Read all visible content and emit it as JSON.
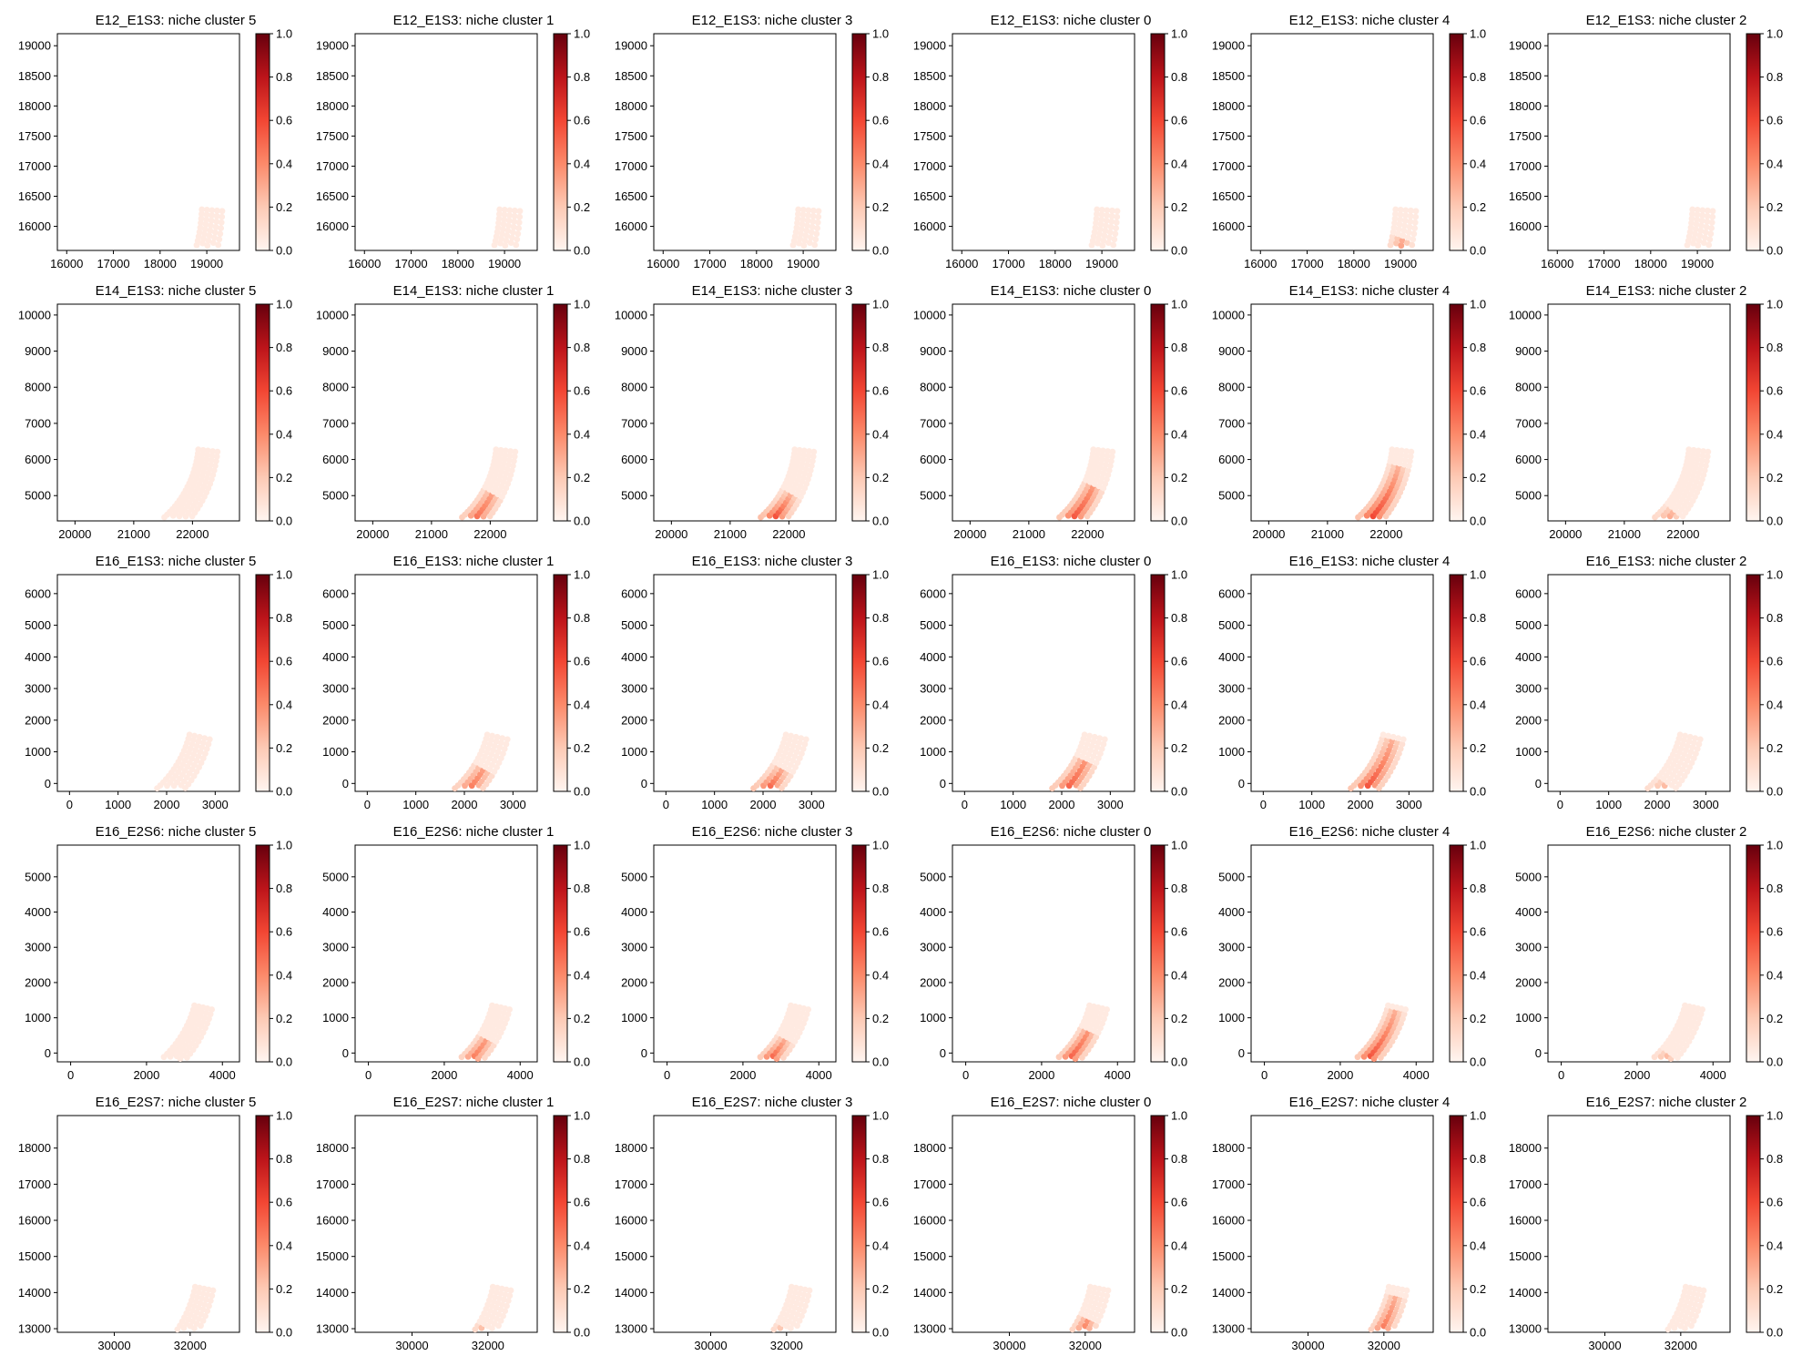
{
  "figure": {
    "colorbar_ticks": [
      "0.0",
      "0.2",
      "0.4",
      "0.6",
      "0.8",
      "1.0"
    ],
    "colormap": [
      "#fff5f0",
      "#fdcab5",
      "#fc8a6a",
      "#f24633",
      "#bc141a",
      "#67000d"
    ],
    "tissue_base_color": "#fee7dc"
  },
  "chart_data": [
    {
      "type": "spatial-scatter",
      "sample": "E12_E1S3",
      "cluster": 5,
      "title": "E12_E1S3: niche cluster 5",
      "xticks": [
        "16000",
        "17000",
        "18000",
        "19000"
      ],
      "yticks": [
        "19000",
        "18500",
        "18000",
        "17500",
        "17000",
        "16500",
        "16000"
      ],
      "xlim": [
        15800,
        19700
      ],
      "ylim": [
        15600,
        19200
      ],
      "colorbar_range": [
        0,
        1
      ]
    },
    {
      "type": "spatial-scatter",
      "sample": "E12_E1S3",
      "cluster": 1,
      "title": "E12_E1S3: niche cluster 1",
      "xticks": [
        "16000",
        "17000",
        "18000",
        "19000"
      ],
      "yticks": [
        "19000",
        "18500",
        "18000",
        "17500",
        "17000",
        "16500",
        "16000"
      ],
      "xlim": [
        15800,
        19700
      ],
      "ylim": [
        15600,
        19200
      ],
      "colorbar_range": [
        0,
        1
      ]
    },
    {
      "type": "spatial-scatter",
      "sample": "E12_E1S3",
      "cluster": 3,
      "title": "E12_E1S3: niche cluster 3",
      "xticks": [
        "16000",
        "17000",
        "18000",
        "19000"
      ],
      "yticks": [
        "19000",
        "18500",
        "18000",
        "17500",
        "17000",
        "16500",
        "16000"
      ],
      "xlim": [
        15800,
        19700
      ],
      "ylim": [
        15600,
        19200
      ],
      "colorbar_range": [
        0,
        1
      ]
    },
    {
      "type": "spatial-scatter",
      "sample": "E12_E1S3",
      "cluster": 0,
      "title": "E12_E1S3: niche cluster 0",
      "xticks": [
        "16000",
        "17000",
        "18000",
        "19000"
      ],
      "yticks": [
        "19000",
        "18500",
        "18000",
        "17500",
        "17000",
        "16500",
        "16000"
      ],
      "xlim": [
        15800,
        19700
      ],
      "ylim": [
        15600,
        19200
      ],
      "colorbar_range": [
        0,
        1
      ]
    },
    {
      "type": "spatial-scatter",
      "sample": "E12_E1S3",
      "cluster": 4,
      "title": "E12_E1S3: niche cluster 4",
      "xticks": [
        "16000",
        "17000",
        "18000",
        "19000"
      ],
      "yticks": [
        "19000",
        "18500",
        "18000",
        "17500",
        "17000",
        "16500",
        "16000"
      ],
      "xlim": [
        15800,
        19700
      ],
      "ylim": [
        15600,
        19200
      ],
      "colorbar_range": [
        0,
        1
      ]
    },
    {
      "type": "spatial-scatter",
      "sample": "E12_E1S3",
      "cluster": 2,
      "title": "E12_E1S3: niche cluster 2",
      "xticks": [
        "16000",
        "17000",
        "18000",
        "19000"
      ],
      "yticks": [
        "19000",
        "18500",
        "18000",
        "17500",
        "17000",
        "16500",
        "16000"
      ],
      "xlim": [
        15800,
        19700
      ],
      "ylim": [
        15600,
        19200
      ],
      "colorbar_range": [
        0,
        1
      ]
    },
    {
      "type": "spatial-scatter",
      "sample": "E14_E1S3",
      "cluster": 5,
      "title": "E14_E1S3: niche cluster 5",
      "xticks": [
        "20000",
        "21000",
        "22000"
      ],
      "yticks": [
        "10000",
        "9000",
        "8000",
        "7000",
        "6000",
        "5000"
      ],
      "xlim": [
        19700,
        22800
      ],
      "ylim": [
        4300,
        10300
      ],
      "colorbar_range": [
        0,
        1
      ]
    },
    {
      "type": "spatial-scatter",
      "sample": "E14_E1S3",
      "cluster": 1,
      "title": "E14_E1S3: niche cluster 1",
      "xticks": [
        "20000",
        "21000",
        "22000"
      ],
      "yticks": [
        "10000",
        "9000",
        "8000",
        "7000",
        "6000",
        "5000"
      ],
      "xlim": [
        19700,
        22800
      ],
      "ylim": [
        4300,
        10300
      ],
      "colorbar_range": [
        0,
        1
      ]
    },
    {
      "type": "spatial-scatter",
      "sample": "E14_E1S3",
      "cluster": 3,
      "title": "E14_E1S3: niche cluster 3",
      "xticks": [
        "20000",
        "21000",
        "22000"
      ],
      "yticks": [
        "10000",
        "9000",
        "8000",
        "7000",
        "6000",
        "5000"
      ],
      "xlim": [
        19700,
        22800
      ],
      "ylim": [
        4300,
        10300
      ],
      "colorbar_range": [
        0,
        1
      ]
    },
    {
      "type": "spatial-scatter",
      "sample": "E14_E1S3",
      "cluster": 0,
      "title": "E14_E1S3: niche cluster 0",
      "xticks": [
        "20000",
        "21000",
        "22000"
      ],
      "yticks": [
        "10000",
        "9000",
        "8000",
        "7000",
        "6000",
        "5000"
      ],
      "xlim": [
        19700,
        22800
      ],
      "ylim": [
        4300,
        10300
      ],
      "colorbar_range": [
        0,
        1
      ]
    },
    {
      "type": "spatial-scatter",
      "sample": "E14_E1S3",
      "cluster": 4,
      "title": "E14_E1S3: niche cluster 4",
      "xticks": [
        "20000",
        "21000",
        "22000"
      ],
      "yticks": [
        "10000",
        "9000",
        "8000",
        "7000",
        "6000",
        "5000"
      ],
      "xlim": [
        19700,
        22800
      ],
      "ylim": [
        4300,
        10300
      ],
      "colorbar_range": [
        0,
        1
      ]
    },
    {
      "type": "spatial-scatter",
      "sample": "E14_E1S3",
      "cluster": 2,
      "title": "E14_E1S3: niche cluster 2",
      "xticks": [
        "20000",
        "21000",
        "22000"
      ],
      "yticks": [
        "10000",
        "9000",
        "8000",
        "7000",
        "6000",
        "5000"
      ],
      "xlim": [
        19700,
        22800
      ],
      "ylim": [
        4300,
        10300
      ],
      "colorbar_range": [
        0,
        1
      ]
    },
    {
      "type": "spatial-scatter",
      "sample": "E16_E1S3",
      "cluster": 5,
      "title": "E16_E1S3: niche cluster 5",
      "xticks": [
        "0",
        "1000",
        "2000",
        "3000"
      ],
      "yticks": [
        "6000",
        "5000",
        "4000",
        "3000",
        "2000",
        "1000",
        "0"
      ],
      "xlim": [
        -250,
        3500
      ],
      "ylim": [
        -250,
        6600
      ],
      "colorbar_range": [
        0,
        1
      ]
    },
    {
      "type": "spatial-scatter",
      "sample": "E16_E1S3",
      "cluster": 1,
      "title": "E16_E1S3: niche cluster 1",
      "xticks": [
        "0",
        "1000",
        "2000",
        "3000"
      ],
      "yticks": [
        "6000",
        "5000",
        "4000",
        "3000",
        "2000",
        "1000",
        "0"
      ],
      "xlim": [
        -250,
        3500
      ],
      "ylim": [
        -250,
        6600
      ],
      "colorbar_range": [
        0,
        1
      ]
    },
    {
      "type": "spatial-scatter",
      "sample": "E16_E1S3",
      "cluster": 3,
      "title": "E16_E1S3: niche cluster 3",
      "xticks": [
        "0",
        "1000",
        "2000",
        "3000"
      ],
      "yticks": [
        "6000",
        "5000",
        "4000",
        "3000",
        "2000",
        "1000",
        "0"
      ],
      "xlim": [
        -250,
        3500
      ],
      "ylim": [
        -250,
        6600
      ],
      "colorbar_range": [
        0,
        1
      ]
    },
    {
      "type": "spatial-scatter",
      "sample": "E16_E1S3",
      "cluster": 0,
      "title": "E16_E1S3: niche cluster 0",
      "xticks": [
        "0",
        "1000",
        "2000",
        "3000"
      ],
      "yticks": [
        "6000",
        "5000",
        "4000",
        "3000",
        "2000",
        "1000",
        "0"
      ],
      "xlim": [
        -250,
        3500
      ],
      "ylim": [
        -250,
        6600
      ],
      "colorbar_range": [
        0,
        1
      ]
    },
    {
      "type": "spatial-scatter",
      "sample": "E16_E1S3",
      "cluster": 4,
      "title": "E16_E1S3: niche cluster 4",
      "xticks": [
        "0",
        "1000",
        "2000",
        "3000"
      ],
      "yticks": [
        "6000",
        "5000",
        "4000",
        "3000",
        "2000",
        "1000",
        "0"
      ],
      "xlim": [
        -250,
        3500
      ],
      "ylim": [
        -250,
        6600
      ],
      "colorbar_range": [
        0,
        1
      ]
    },
    {
      "type": "spatial-scatter",
      "sample": "E16_E1S3",
      "cluster": 2,
      "title": "E16_E1S3: niche cluster 2",
      "xticks": [
        "0",
        "1000",
        "2000",
        "3000"
      ],
      "yticks": [
        "6000",
        "5000",
        "4000",
        "3000",
        "2000",
        "1000",
        "0"
      ],
      "xlim": [
        -250,
        3500
      ],
      "ylim": [
        -250,
        6600
      ],
      "colorbar_range": [
        0,
        1
      ]
    },
    {
      "type": "spatial-scatter",
      "sample": "E16_E2S6",
      "cluster": 5,
      "title": "E16_E2S6: niche cluster 5",
      "xticks": [
        "0",
        "2000",
        "4000"
      ],
      "yticks": [
        "5000",
        "4000",
        "3000",
        "2000",
        "1000",
        "0"
      ],
      "xlim": [
        -350,
        4450
      ],
      "ylim": [
        -250,
        5900
      ],
      "colorbar_range": [
        0,
        1
      ]
    },
    {
      "type": "spatial-scatter",
      "sample": "E16_E2S6",
      "cluster": 1,
      "title": "E16_E2S6: niche cluster 1",
      "xticks": [
        "0",
        "2000",
        "4000"
      ],
      "yticks": [
        "5000",
        "4000",
        "3000",
        "2000",
        "1000",
        "0"
      ],
      "xlim": [
        -350,
        4450
      ],
      "ylim": [
        -250,
        5900
      ],
      "colorbar_range": [
        0,
        1
      ]
    },
    {
      "type": "spatial-scatter",
      "sample": "E16_E2S6",
      "cluster": 3,
      "title": "E16_E2S6: niche cluster 3",
      "xticks": [
        "0",
        "2000",
        "4000"
      ],
      "yticks": [
        "5000",
        "4000",
        "3000",
        "2000",
        "1000",
        "0"
      ],
      "xlim": [
        -350,
        4450
      ],
      "ylim": [
        -250,
        5900
      ],
      "colorbar_range": [
        0,
        1
      ]
    },
    {
      "type": "spatial-scatter",
      "sample": "E16_E2S6",
      "cluster": 0,
      "title": "E16_E2S6: niche cluster 0",
      "xticks": [
        "0",
        "2000",
        "4000"
      ],
      "yticks": [
        "5000",
        "4000",
        "3000",
        "2000",
        "1000",
        "0"
      ],
      "xlim": [
        -350,
        4450
      ],
      "ylim": [
        -250,
        5900
      ],
      "colorbar_range": [
        0,
        1
      ]
    },
    {
      "type": "spatial-scatter",
      "sample": "E16_E2S6",
      "cluster": 4,
      "title": "E16_E2S6: niche cluster 4",
      "xticks": [
        "0",
        "2000",
        "4000"
      ],
      "yticks": [
        "5000",
        "4000",
        "3000",
        "2000",
        "1000",
        "0"
      ],
      "xlim": [
        -350,
        4450
      ],
      "ylim": [
        -250,
        5900
      ],
      "colorbar_range": [
        0,
        1
      ]
    },
    {
      "type": "spatial-scatter",
      "sample": "E16_E2S6",
      "cluster": 2,
      "title": "E16_E2S6: niche cluster 2",
      "xticks": [
        "0",
        "2000",
        "4000"
      ],
      "yticks": [
        "5000",
        "4000",
        "3000",
        "2000",
        "1000",
        "0"
      ],
      "xlim": [
        -350,
        4450
      ],
      "ylim": [
        -250,
        5900
      ],
      "colorbar_range": [
        0,
        1
      ]
    },
    {
      "type": "spatial-scatter",
      "sample": "E16_E2S7",
      "cluster": 5,
      "title": "E16_E2S7: niche cluster 5",
      "xticks": [
        "30000",
        "32000"
      ],
      "yticks": [
        "18000",
        "17000",
        "16000",
        "15000",
        "14000",
        "13000"
      ],
      "xlim": [
        28500,
        33300
      ],
      "ylim": [
        12900,
        18900
      ],
      "colorbar_range": [
        0,
        1
      ]
    },
    {
      "type": "spatial-scatter",
      "sample": "E16_E2S7",
      "cluster": 1,
      "title": "E16_E2S7: niche cluster 1",
      "xticks": [
        "30000",
        "32000"
      ],
      "yticks": [
        "18000",
        "17000",
        "16000",
        "15000",
        "14000",
        "13000"
      ],
      "xlim": [
        28500,
        33300
      ],
      "ylim": [
        12900,
        18900
      ],
      "colorbar_range": [
        0,
        1
      ]
    },
    {
      "type": "spatial-scatter",
      "sample": "E16_E2S7",
      "cluster": 3,
      "title": "E16_E2S7: niche cluster 3",
      "xticks": [
        "30000",
        "32000"
      ],
      "yticks": [
        "18000",
        "17000",
        "16000",
        "15000",
        "14000",
        "13000"
      ],
      "xlim": [
        28500,
        33300
      ],
      "ylim": [
        12900,
        18900
      ],
      "colorbar_range": [
        0,
        1
      ]
    },
    {
      "type": "spatial-scatter",
      "sample": "E16_E2S7",
      "cluster": 0,
      "title": "E16_E2S7: niche cluster 0",
      "xticks": [
        "30000",
        "32000"
      ],
      "yticks": [
        "18000",
        "17000",
        "16000",
        "15000",
        "14000",
        "13000"
      ],
      "xlim": [
        28500,
        33300
      ],
      "ylim": [
        12900,
        18900
      ],
      "colorbar_range": [
        0,
        1
      ]
    },
    {
      "type": "spatial-scatter",
      "sample": "E16_E2S7",
      "cluster": 4,
      "title": "E16_E2S7: niche cluster 4",
      "xticks": [
        "30000",
        "32000"
      ],
      "yticks": [
        "18000",
        "17000",
        "16000",
        "15000",
        "14000",
        "13000"
      ],
      "xlim": [
        28500,
        33300
      ],
      "ylim": [
        12900,
        18900
      ],
      "colorbar_range": [
        0,
        1
      ]
    },
    {
      "type": "spatial-scatter",
      "sample": "E16_E2S7",
      "cluster": 2,
      "title": "E16_E2S7: niche cluster 2",
      "xticks": [
        "30000",
        "32000"
      ],
      "yticks": [
        "18000",
        "17000",
        "16000",
        "15000",
        "14000",
        "13000"
      ],
      "xlim": [
        28500,
        33300
      ],
      "ylim": [
        12900,
        18900
      ],
      "colorbar_range": [
        0,
        1
      ]
    }
  ]
}
